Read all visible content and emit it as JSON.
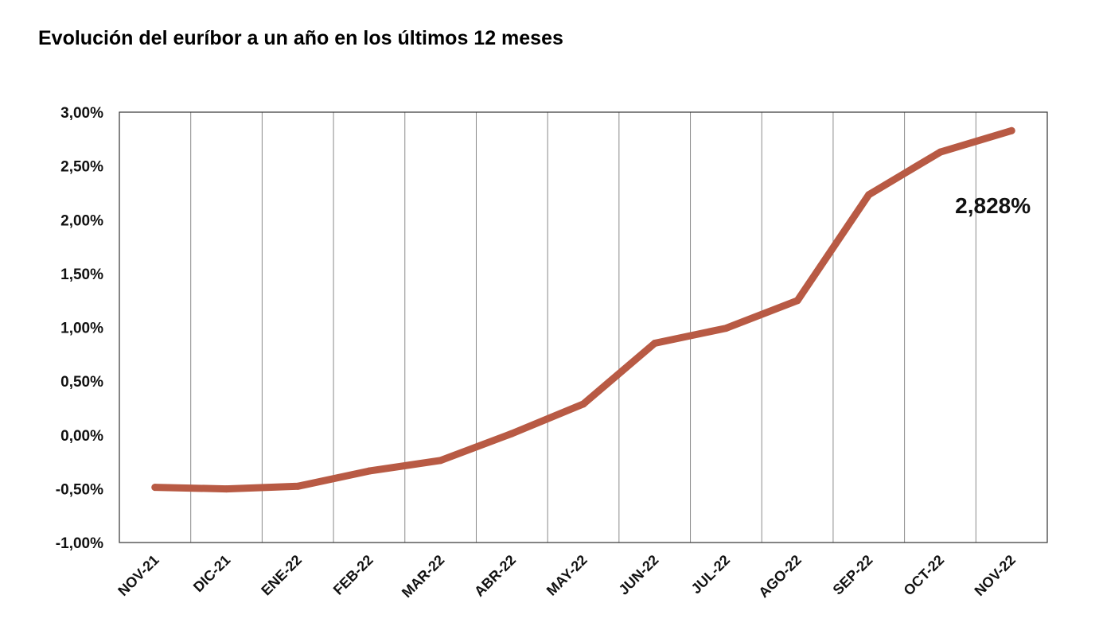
{
  "chart_data": {
    "type": "line",
    "title": "Evolución del euríbor a un año en los últimos 12 meses",
    "categories": [
      "NOV-21",
      "DIC-21",
      "ENE-22",
      "FEB-22",
      "MAR-22",
      "ABR-22",
      "MAY-22",
      "JUN-22",
      "JUL-22",
      "AGO-22",
      "SEP-22",
      "OCT-22",
      "NOV-22"
    ],
    "series": [
      {
        "values": [
          -0.487,
          -0.502,
          -0.477,
          -0.335,
          -0.237,
          0.013,
          0.287,
          0.852,
          0.992,
          1.249,
          2.233,
          2.629,
          2.828
        ],
        "color": "#b85a44"
      }
    ],
    "y_ticks": [
      "3,00%",
      "2,50%",
      "2,00%",
      "1,50%",
      "1,00%",
      "0,50%",
      "0,00%",
      "-0,50%",
      "-1,00%"
    ],
    "ylim": [
      -1.0,
      3.0
    ],
    "y_tick_step": 0.5,
    "grid": "vertical",
    "annotation": {
      "text": "2,828%",
      "category": "NOV-22"
    },
    "xlabel": "",
    "ylabel": ""
  }
}
